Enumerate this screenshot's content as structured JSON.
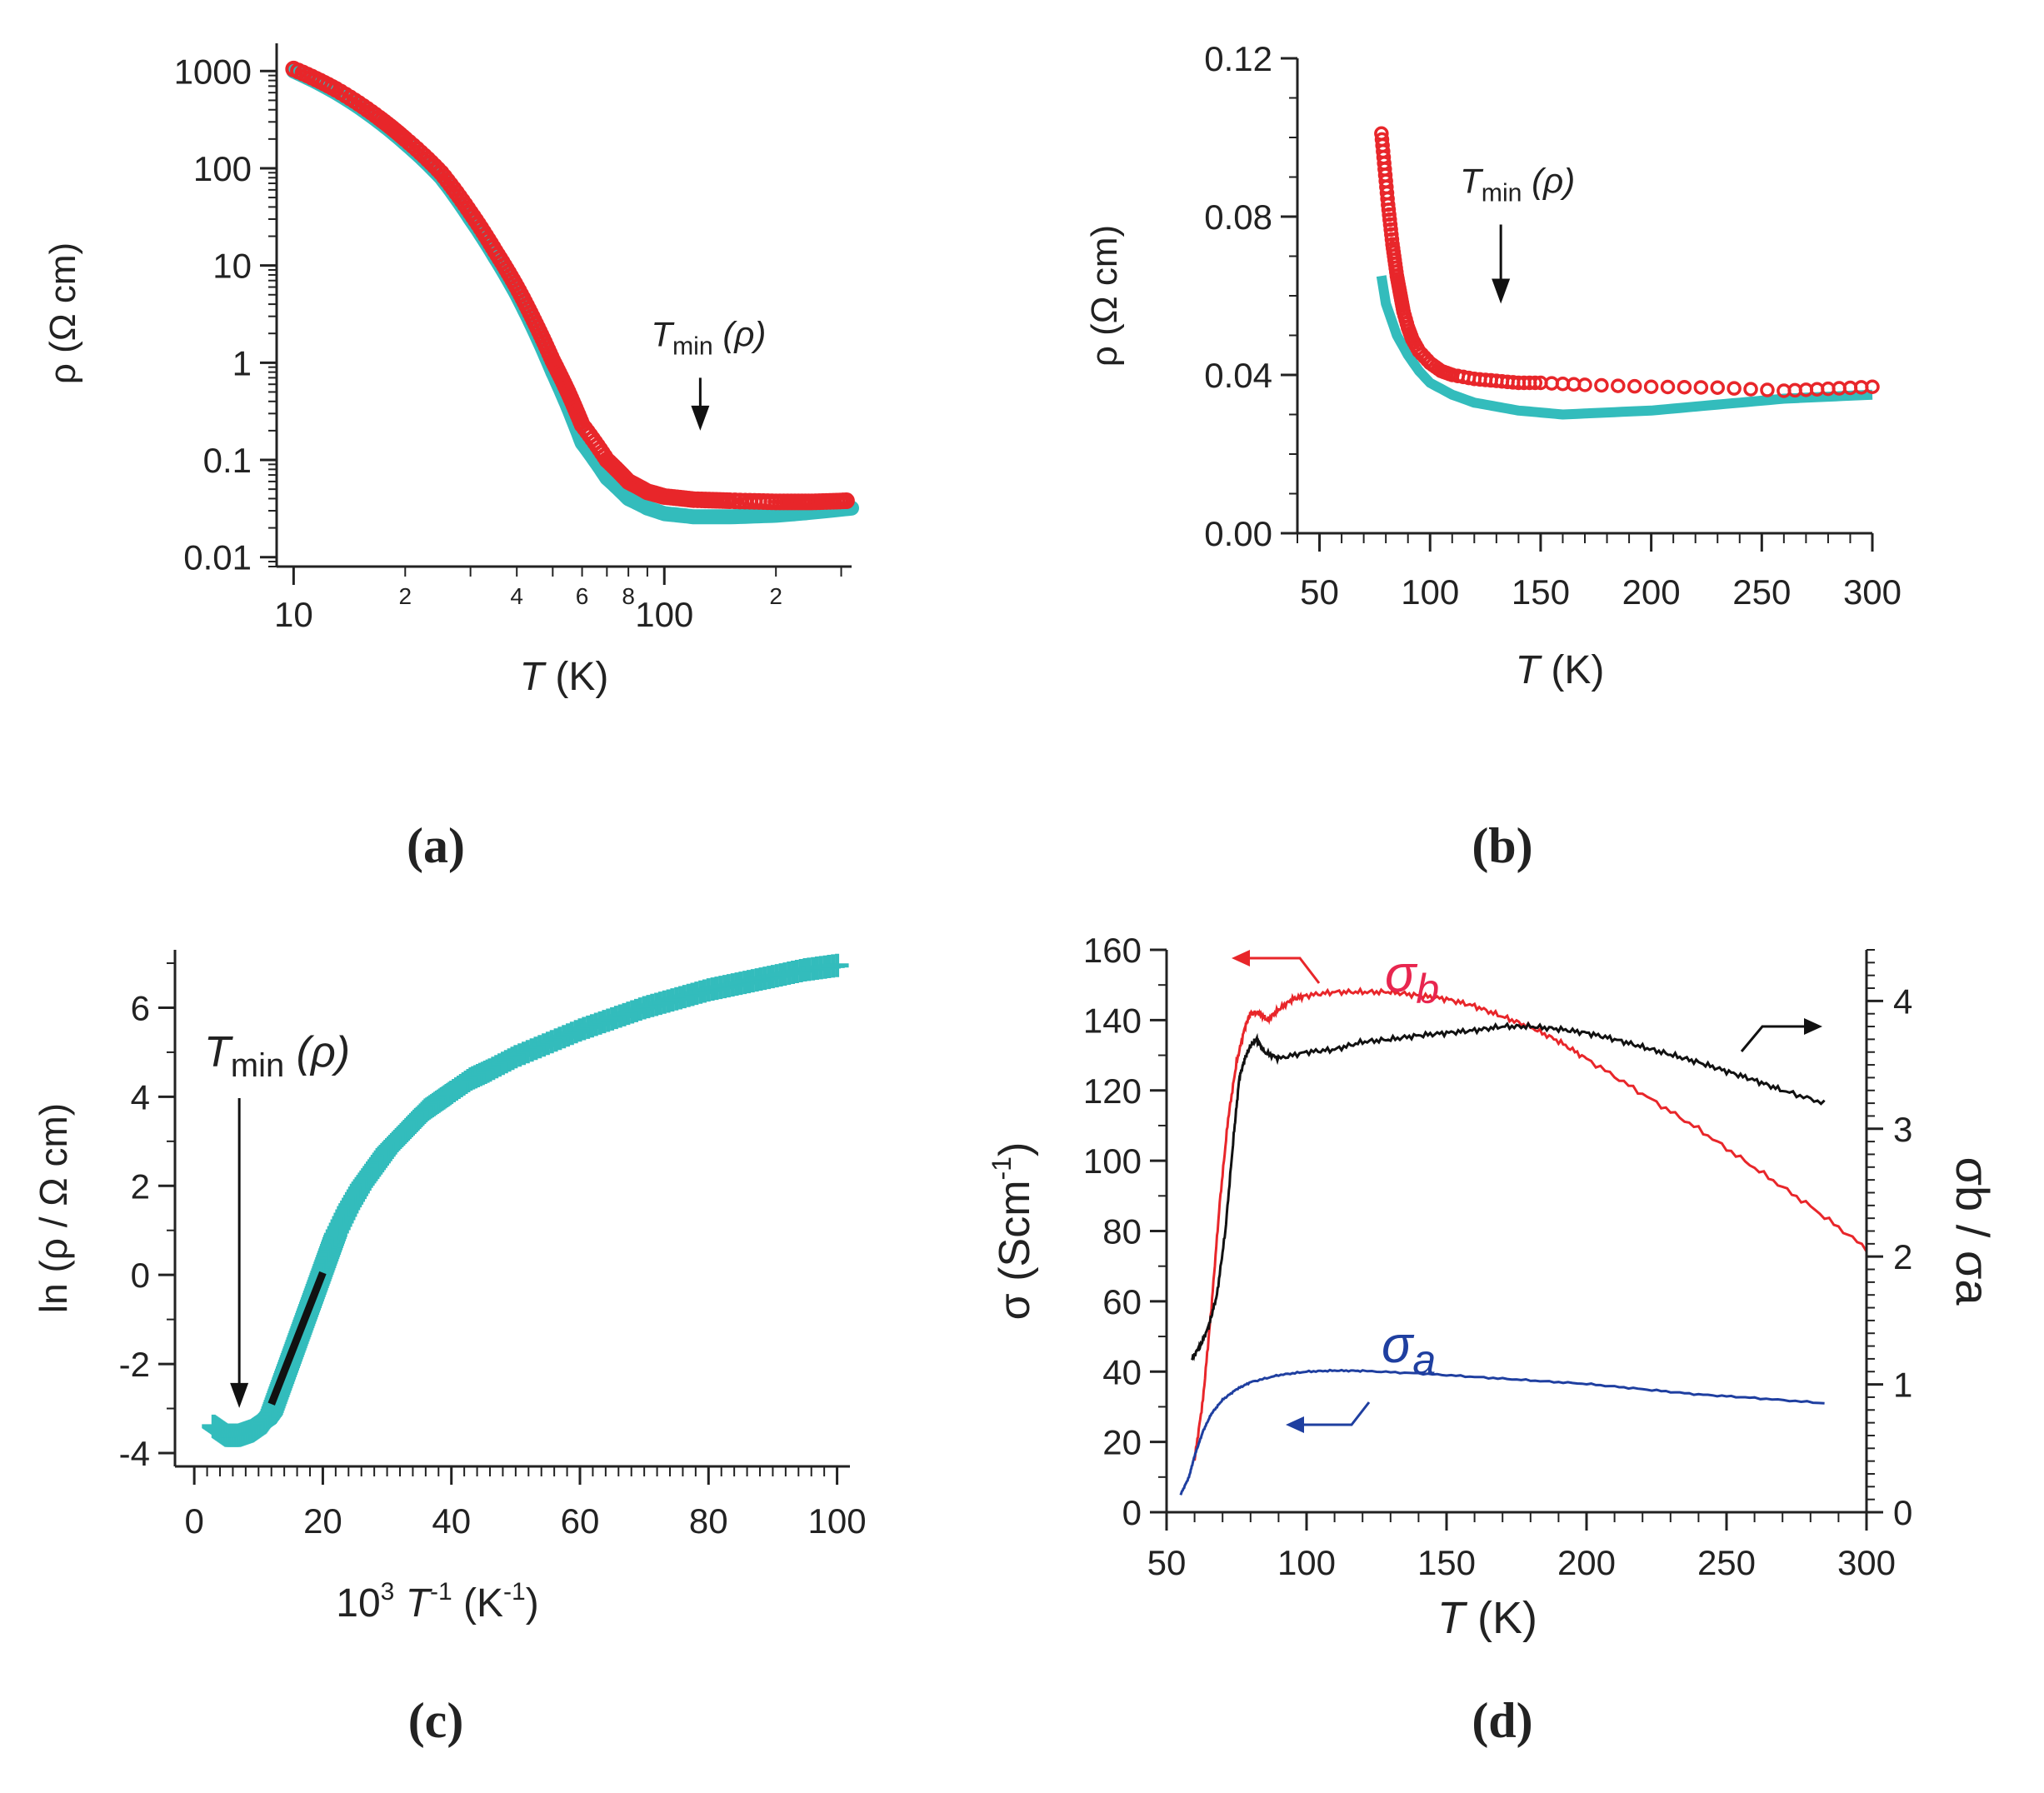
{
  "colors": {
    "teal": "#33bcbc",
    "red": "#e8262a",
    "black": "#111111",
    "blue": "#1f3fa0",
    "pink": "#e8264f"
  },
  "chart_data": [
    {
      "id": "a",
      "panel_label": "(a)",
      "type": "line",
      "xscale": "log",
      "yscale": "log",
      "xlim": [
        9,
        320
      ],
      "ylim": [
        0.008,
        1300
      ],
      "xlabel_italic": "T",
      "xlabel_unit": " (K)",
      "ylabel": "ρ (Ω cm)",
      "xticks_major": [
        {
          "v": 10,
          "label": "10"
        },
        {
          "v": 100,
          "label": "100"
        }
      ],
      "xticks_minor": [
        {
          "v": 20,
          "label": "2"
        },
        {
          "v": 40,
          "label": "4"
        },
        {
          "v": 60,
          "label": "6"
        },
        {
          "v": 80,
          "label": "8"
        },
        {
          "v": 200,
          "label": "2"
        }
      ],
      "yticks": [
        {
          "v": 1000,
          "label": "1000"
        },
        {
          "v": 100,
          "label": "100"
        },
        {
          "v": 10,
          "label": "10"
        },
        {
          "v": 1,
          "label": "1"
        },
        {
          "v": 0.1,
          "label": "0.1"
        },
        {
          "v": 0.01,
          "label": "0.01"
        }
      ],
      "annotation": {
        "T": "T",
        "sub": "min",
        "rest": " (ρ)",
        "x": 125,
        "y": 0.2,
        "y_arrow_start": 0.7
      },
      "series": [
        {
          "name": "teal",
          "color": "teal",
          "x": [
            10,
            13,
            17,
            20,
            25,
            30,
            35,
            40,
            45,
            50,
            55,
            60,
            70,
            80,
            90,
            100,
            120,
            150,
            200,
            250,
            320
          ],
          "y": [
            1000,
            600,
            300,
            180,
            80,
            30,
            12,
            5,
            2,
            0.8,
            0.35,
            0.15,
            0.065,
            0.04,
            0.032,
            0.028,
            0.026,
            0.026,
            0.027,
            0.029,
            0.032
          ]
        },
        {
          "name": "red",
          "color": "red",
          "x": [
            10,
            13,
            17,
            20,
            25,
            30,
            35,
            40,
            45,
            50,
            55,
            60,
            70,
            80,
            90,
            100,
            120,
            150,
            200,
            250,
            310
          ],
          "y": [
            1050,
            650,
            330,
            200,
            90,
            35,
            14,
            6,
            2.5,
            1.05,
            0.5,
            0.23,
            0.1,
            0.06,
            0.047,
            0.042,
            0.039,
            0.038,
            0.037,
            0.037,
            0.038
          ]
        }
      ]
    },
    {
      "id": "b",
      "panel_label": "(b)",
      "type": "line",
      "xlim": [
        40,
        300
      ],
      "ylim": [
        0,
        0.12
      ],
      "xlabel_italic": "T",
      "xlabel_unit": " (K)",
      "ylabel": "ρ (Ω cm)",
      "xticks": [
        {
          "v": 50,
          "label": "50"
        },
        {
          "v": 100,
          "label": "100"
        },
        {
          "v": 150,
          "label": "150"
        },
        {
          "v": 200,
          "label": "200"
        },
        {
          "v": 250,
          "label": "250"
        },
        {
          "v": 300,
          "label": "300"
        }
      ],
      "yticks": [
        {
          "v": 0,
          "label": "0.00"
        },
        {
          "v": 0.04,
          "label": "0.04"
        },
        {
          "v": 0.08,
          "label": "0.08"
        },
        {
          "v": 0.12,
          "label": "0.12"
        }
      ],
      "annotation": {
        "T": "T",
        "sub": "min",
        "rest": " (ρ)",
        "x": 132,
        "y": 0.058,
        "y_arrow_start": 0.078
      },
      "series": [
        {
          "name": "teal",
          "color": "teal",
          "x": [
            78,
            80,
            85,
            90,
            95,
            100,
            110,
            120,
            130,
            140,
            150,
            160,
            180,
            200,
            220,
            240,
            260,
            280,
            300
          ],
          "y": [
            0.065,
            0.058,
            0.05,
            0.045,
            0.041,
            0.038,
            0.035,
            0.033,
            0.032,
            0.031,
            0.0305,
            0.03,
            0.0305,
            0.031,
            0.032,
            0.033,
            0.034,
            0.0345,
            0.035
          ]
        },
        {
          "name": "red",
          "color": "red",
          "x": [
            78,
            79,
            80,
            81,
            82,
            83,
            84,
            85,
            86,
            87,
            88,
            90,
            92,
            95,
            100,
            105,
            110,
            120,
            130,
            140,
            150,
            170,
            200,
            230,
            260,
            280,
            300
          ],
          "y": [
            0.101,
            0.095,
            0.089,
            0.083,
            0.078,
            0.073,
            0.069,
            0.065,
            0.062,
            0.059,
            0.056,
            0.052,
            0.049,
            0.046,
            0.043,
            0.041,
            0.04,
            0.039,
            0.0385,
            0.038,
            0.038,
            0.0375,
            0.037,
            0.0368,
            0.036,
            0.0365,
            0.037
          ]
        }
      ]
    },
    {
      "id": "c",
      "panel_label": "(c)",
      "type": "scatter",
      "xlim": [
        -3,
        102
      ],
      "ylim": [
        -4.3,
        7.3
      ],
      "xlabel_pre": "10",
      "xlabel_sup": "3",
      "xlabel_T": " T",
      "xlabel_sup2": "-1",
      "xlabel_unit": " (K",
      "xlabel_sup3": "-1",
      "xlabel_end": ")",
      "ylabel": "ln (ρ / Ω cm)",
      "xticks": [
        {
          "v": 0,
          "label": "0"
        },
        {
          "v": 20,
          "label": "20"
        },
        {
          "v": 40,
          "label": "40"
        },
        {
          "v": 60,
          "label": "60"
        },
        {
          "v": 80,
          "label": "80"
        },
        {
          "v": 100,
          "label": "100"
        }
      ],
      "yticks": [
        {
          "v": -4,
          "label": "-4"
        },
        {
          "v": -2,
          "label": "-2"
        },
        {
          "v": 0,
          "label": "0"
        },
        {
          "v": 2,
          "label": "2"
        },
        {
          "v": 4,
          "label": "4"
        },
        {
          "v": 6,
          "label": "6"
        }
      ],
      "annotation": {
        "T": "T",
        "sub": "min",
        "rest": " (ρ)",
        "x": 7,
        "y": -3.7,
        "y_arrow_start": 3.0
      },
      "series": [
        {
          "name": "teal",
          "color": "teal",
          "x": [
            3,
            4,
            5,
            6,
            7,
            8,
            9,
            10,
            11,
            12,
            13,
            14,
            15,
            16,
            17,
            18,
            19,
            20,
            21,
            22,
            24,
            26,
            28,
            30,
            32,
            34,
            36,
            38,
            40,
            43,
            46,
            50,
            55,
            60,
            65,
            70,
            75,
            80,
            85,
            90,
            95,
            100
          ],
          "y": [
            -3.4,
            -3.5,
            -3.6,
            -3.6,
            -3.6,
            -3.55,
            -3.5,
            -3.4,
            -3.3,
            -3.1,
            -2.7,
            -2.3,
            -1.9,
            -1.5,
            -1.1,
            -0.7,
            -0.3,
            0.1,
            0.5,
            0.9,
            1.5,
            2.0,
            2.4,
            2.8,
            3.1,
            3.4,
            3.7,
            3.9,
            4.1,
            4.4,
            4.6,
            4.9,
            5.2,
            5.5,
            5.75,
            6.0,
            6.2,
            6.4,
            6.55,
            6.7,
            6.85,
            6.95
          ]
        },
        {
          "name": "fit",
          "color": "black",
          "x": [
            12,
            20
          ],
          "y": [
            -2.9,
            0.05
          ]
        }
      ]
    },
    {
      "id": "d",
      "panel_label": "(d)",
      "type": "line",
      "xlim": [
        50,
        300
      ],
      "ylim": [
        0,
        160
      ],
      "y2lim": [
        0,
        4.4
      ],
      "xlabel_italic": "T",
      "xlabel_unit": " (K)",
      "ylabel": "σ  (Scm",
      "ylabel_sup": "-1",
      "ylabel_end": ")",
      "y2label": "σb / σa",
      "xticks": [
        {
          "v": 50,
          "label": "50"
        },
        {
          "v": 100,
          "label": "100"
        },
        {
          "v": 150,
          "label": "150"
        },
        {
          "v": 200,
          "label": "200"
        },
        {
          "v": 250,
          "label": "250"
        },
        {
          "v": 300,
          "label": "300"
        }
      ],
      "yticks": [
        {
          "v": 0,
          "label": "0"
        },
        {
          "v": 20,
          "label": "20"
        },
        {
          "v": 40,
          "label": "40"
        },
        {
          "v": 60,
          "label": "60"
        },
        {
          "v": 80,
          "label": "80"
        },
        {
          "v": 100,
          "label": "100"
        },
        {
          "v": 120,
          "label": "120"
        },
        {
          "v": 140,
          "label": "140"
        },
        {
          "v": 160,
          "label": "160"
        }
      ],
      "y2ticks": [
        {
          "v": 0,
          "label": "0"
        },
        {
          "v": 1,
          "label": "1"
        },
        {
          "v": 2,
          "label": "2"
        },
        {
          "v": 3,
          "label": "3"
        },
        {
          "v": 4,
          "label": "4"
        }
      ],
      "labels": {
        "sigma_b": "σ",
        "sigma_b_sub": "b",
        "sigma_a": "σ",
        "sigma_a_sub": "a"
      },
      "series": [
        {
          "name": "σb",
          "color": "red",
          "axis": "left",
          "x": [
            60,
            63,
            66,
            69,
            72,
            75,
            78,
            80,
            83,
            86,
            90,
            95,
            100,
            110,
            120,
            130,
            140,
            150,
            160,
            170,
            180,
            190,
            200,
            220,
            240,
            260,
            280,
            300
          ],
          "y": [
            15,
            32,
            58,
            88,
            112,
            128,
            138,
            142,
            142,
            140,
            143,
            146,
            147,
            148,
            148,
            148,
            147,
            146,
            144,
            141,
            138,
            134,
            129,
            119,
            109,
            98,
            87,
            75
          ]
        },
        {
          "name": "σa",
          "color": "blue",
          "axis": "left",
          "x": [
            55,
            58,
            60,
            63,
            66,
            70,
            75,
            80,
            90,
            100,
            110,
            120,
            140,
            160,
            180,
            200,
            220,
            240,
            260,
            285
          ],
          "y": [
            5,
            10,
            16,
            23,
            28,
            32,
            35,
            37,
            39,
            40,
            40.3,
            40.2,
            39.5,
            38.5,
            37.5,
            36.5,
            35,
            33.5,
            32.5,
            31
          ]
        },
        {
          "name": "σb/σa",
          "color": "black",
          "axis": "right",
          "x": [
            59,
            62,
            65,
            68,
            71,
            74,
            76,
            78,
            80,
            82,
            85,
            90,
            100,
            110,
            120,
            130,
            140,
            150,
            160,
            170,
            180,
            190,
            200,
            210,
            220,
            230,
            240,
            250,
            260,
            270,
            285
          ],
          "y": [
            1.2,
            1.3,
            1.45,
            1.7,
            2.2,
            2.95,
            3.4,
            3.55,
            3.65,
            3.7,
            3.6,
            3.55,
            3.6,
            3.62,
            3.68,
            3.7,
            3.73,
            3.75,
            3.77,
            3.8,
            3.8,
            3.78,
            3.75,
            3.7,
            3.64,
            3.58,
            3.52,
            3.45,
            3.38,
            3.3,
            3.2
          ]
        }
      ]
    }
  ]
}
